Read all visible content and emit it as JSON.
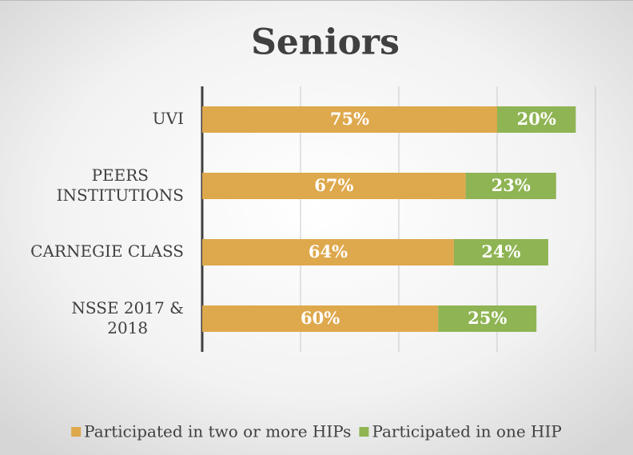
{
  "chart_data": {
    "type": "stacked_bar_horizontal",
    "title": "Seniors",
    "categories": [
      "UVI",
      "PEERS\nINSTITUTIONS",
      "CARNEGIE CLASS",
      "NSSE 2017 &\n2018"
    ],
    "series": [
      {
        "name": "Participated in two or more HIPs",
        "color": "#dea84c",
        "values": [
          75,
          67,
          64,
          60
        ],
        "value_labels": [
          "75%",
          "67%",
          "64%",
          "60%"
        ]
      },
      {
        "name": "Participated in one HIP",
        "color": "#8fb453",
        "values": [
          20,
          23,
          24,
          25
        ],
        "value_labels": [
          "20%",
          "23%",
          "24%",
          "25%"
        ]
      }
    ],
    "xlim": [
      0,
      100
    ],
    "xticks": [
      0,
      25,
      50,
      75,
      100
    ],
    "grid": true,
    "legend": "bottom"
  }
}
